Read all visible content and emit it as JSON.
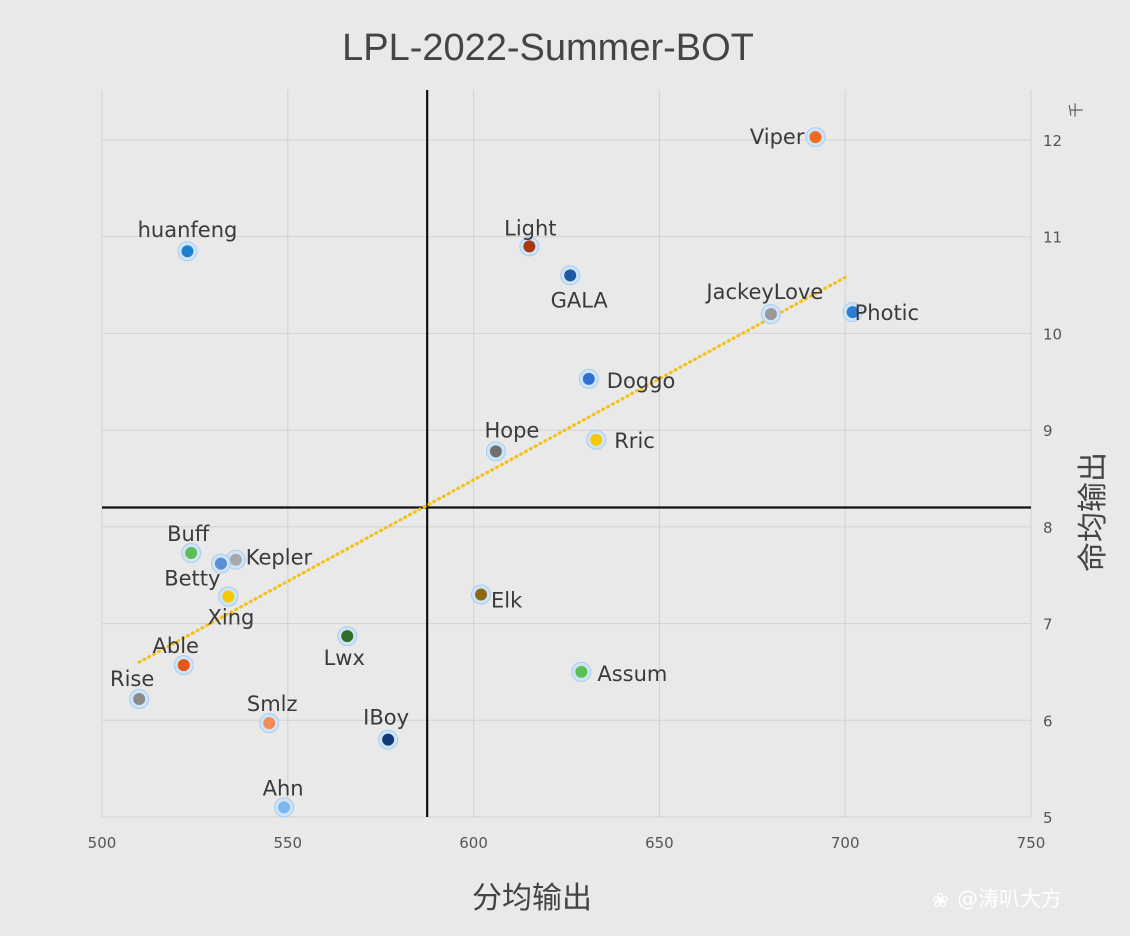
{
  "chart_data": {
    "type": "scatter",
    "title": "LPL-2022-Summer-BOT",
    "xlabel": "分均输出",
    "ylabel": "命均输出",
    "y_unit": "千",
    "xlim": [
      500,
      750
    ],
    "ylim": [
      5,
      12.5
    ],
    "x_ticks": [
      "500",
      "550",
      "600",
      "650",
      "700",
      "750"
    ],
    "y_ticks": [
      "5",
      "6",
      "7",
      "8",
      "9",
      "10",
      "11",
      "12"
    ],
    "grid": true,
    "reference_lines": {
      "x": 587.5,
      "y": 8.2
    },
    "trendline": {
      "x": [
        510,
        700
      ],
      "y": [
        6.6,
        10.58
      ],
      "color": "#f2c21b"
    },
    "points": [
      {
        "name": "Viper",
        "x": 692,
        "y": 12.03,
        "color": "#f26b1d"
      },
      {
        "name": "huanfeng",
        "x": 523,
        "y": 10.85,
        "color": "#1f7fd0"
      },
      {
        "name": "Light",
        "x": 615,
        "y": 10.9,
        "color": "#a8380f"
      },
      {
        "name": "GALA",
        "x": 626,
        "y": 10.6,
        "color": "#1c5aa6"
      },
      {
        "name": "JackeyLove",
        "x": 680,
        "y": 10.2,
        "color": "#9a9a9a"
      },
      {
        "name": "Photic",
        "x": 702,
        "y": 10.22,
        "color": "#2a7fd4"
      },
      {
        "name": "Doggo",
        "x": 631,
        "y": 9.53,
        "color": "#2f6fd6"
      },
      {
        "name": "Hope",
        "x": 606,
        "y": 8.78,
        "color": "#6f6f6f"
      },
      {
        "name": "Rric",
        "x": 633,
        "y": 8.9,
        "color": "#f7c900"
      },
      {
        "name": "Buff",
        "x": 524,
        "y": 7.73,
        "color": "#5cbf52"
      },
      {
        "name": "Kepler",
        "x": 536,
        "y": 7.66,
        "color": "#a8a8a8"
      },
      {
        "name": "Xing",
        "x": 532,
        "y": 7.62,
        "color": "#5a8fd8"
      },
      {
        "name": "Betty",
        "x": 534,
        "y": 7.28,
        "color": "#f7c900"
      },
      {
        "name": "Elk",
        "x": 602,
        "y": 7.3,
        "color": "#8c6a12"
      },
      {
        "name": "Lwx",
        "x": 566,
        "y": 6.87,
        "color": "#2f6f2a"
      },
      {
        "name": "Able",
        "x": 522,
        "y": 6.57,
        "color": "#e0561d"
      },
      {
        "name": "Assum",
        "x": 629,
        "y": 6.5,
        "color": "#5cbf52"
      },
      {
        "name": "Rise",
        "x": 510,
        "y": 6.22,
        "color": "#8a8a8a"
      },
      {
        "name": "Smlz",
        "x": 545,
        "y": 5.97,
        "color": "#f58a55"
      },
      {
        "name": "IBoy",
        "x": 577,
        "y": 5.8,
        "color": "#123a7a"
      },
      {
        "name": "Ahn",
        "x": 549,
        "y": 5.1,
        "color": "#7fb6ee"
      }
    ]
  },
  "watermark": "@涛叭大方"
}
